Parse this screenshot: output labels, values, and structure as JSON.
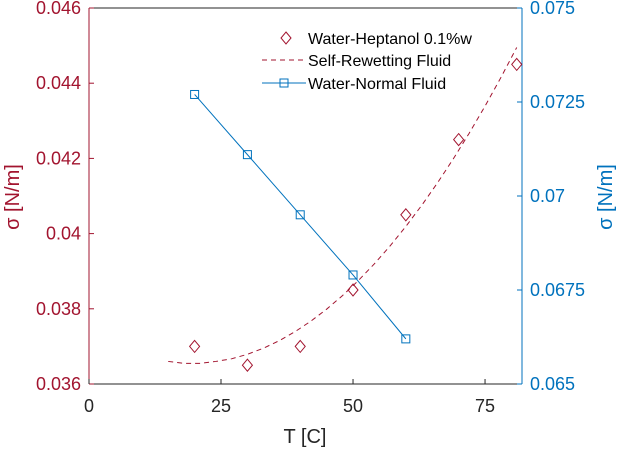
{
  "chart_data": {
    "type": "line",
    "xlabel": "T [C]",
    "xlim": [
      0,
      82
    ],
    "xticks": [
      0,
      25,
      50,
      75
    ],
    "ylabel_left": "σ [N/m]",
    "ylim_left": [
      0.036,
      0.046
    ],
    "yticks_left": [
      "0.036",
      "0.038",
      "0.04",
      "0.042",
      "0.044",
      "0.046"
    ],
    "ylabel_right": "σ [N/m]",
    "ylim_right": [
      0.065,
      0.075
    ],
    "yticks_right": [
      "0.065",
      "0.0675",
      "0.07",
      "0.0725",
      "0.075"
    ],
    "grid": false,
    "legend_position": "top-right",
    "series": [
      {
        "name": "Water-Heptanol 0.1%w",
        "axis": "left",
        "style": "diamond-markers",
        "color": "#A2142F",
        "x": [
          20,
          30,
          40,
          50,
          60,
          70,
          81
        ],
        "y": [
          0.037,
          0.0365,
          0.037,
          0.0385,
          0.0405,
          0.0425,
          0.0445
        ]
      },
      {
        "name": "Self-Rewetting Fluid",
        "axis": "left",
        "style": "dashed-line",
        "color": "#A2142F",
        "x": [
          15,
          18,
          21,
          24,
          27,
          30,
          33,
          36,
          39,
          42,
          45,
          48,
          51,
          54,
          57,
          60,
          63,
          66,
          69,
          72,
          75,
          78,
          81
        ],
        "y": [
          0.0366,
          0.03655,
          0.03655,
          0.0366,
          0.03667,
          0.03679,
          0.03695,
          0.03715,
          0.03739,
          0.03767,
          0.03799,
          0.03835,
          0.03875,
          0.03919,
          0.03967,
          0.04019,
          0.04075,
          0.04135,
          0.04199,
          0.04267,
          0.04339,
          0.04415,
          0.04495
        ]
      },
      {
        "name": "Water-Normal Fluid",
        "axis": "right",
        "style": "solid-line-square-markers",
        "color": "#0072BD",
        "x": [
          20,
          30,
          40,
          50,
          60
        ],
        "y": [
          0.0727,
          0.0711,
          0.0695,
          0.0679,
          0.0662
        ]
      }
    ]
  }
}
